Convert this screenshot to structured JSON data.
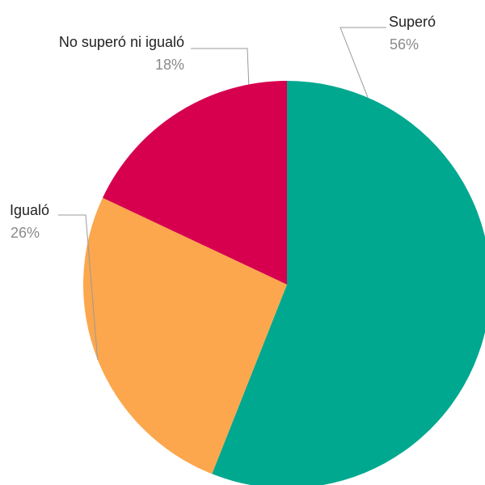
{
  "chart_data": {
    "type": "pie",
    "slices": [
      {
        "label": "Superó",
        "value": 56,
        "value_label": "56%",
        "color": "#00A88F"
      },
      {
        "label": "Igualó",
        "value": 26,
        "value_label": "26%",
        "color": "#FCA74D"
      },
      {
        "label": "No superó ni igualó",
        "value": 18,
        "value_label": "18%",
        "color": "#D6004F"
      }
    ],
    "start_angle": "12 o'clock",
    "direction": "clockwise",
    "legend": "none (outside labels with leader lines)"
  }
}
